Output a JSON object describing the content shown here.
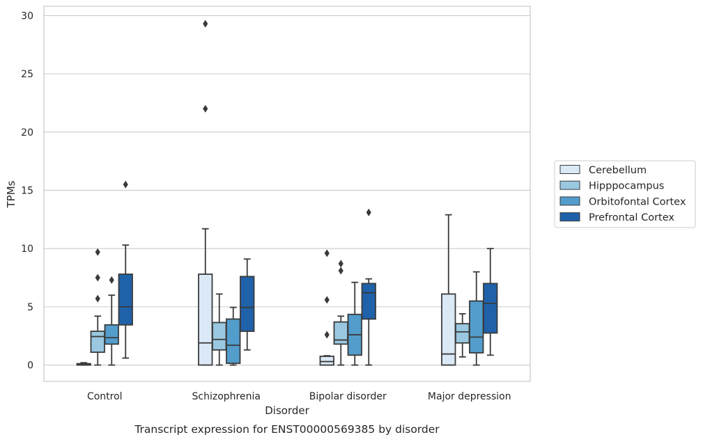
{
  "chart_data": {
    "type": "boxplot",
    "caption": "Transcript expression for ENST00000569385 by disorder",
    "xlabel": "Disorder",
    "ylabel": "TPMs",
    "ylim": [
      -1.4,
      30.8
    ],
    "yticks": [
      0,
      5,
      10,
      15,
      20,
      25,
      30
    ],
    "grid": true,
    "legend_placement": "right-center",
    "categories": [
      "Control",
      "Schizophrenia",
      "Bipolar disorder",
      "Major depression"
    ],
    "series": [
      {
        "name": "Cerebellum",
        "color": "#dbe9f6",
        "boxes": [
          {
            "whisker_low": 0.0,
            "q1": 0.0,
            "median": 0.05,
            "q3": 0.12,
            "whisker_high": 0.2,
            "outliers": []
          },
          {
            "whisker_low": 0.0,
            "q1": 0.0,
            "median": 1.9,
            "q3": 7.8,
            "whisker_high": 11.7,
            "outliers": [
              22.0,
              29.3
            ]
          },
          {
            "whisker_low": 0.0,
            "q1": 0.0,
            "median": 0.3,
            "q3": 0.75,
            "whisker_high": 0.8,
            "outliers": [
              2.6,
              5.6,
              9.6
            ]
          },
          {
            "whisker_low": 0.0,
            "q1": 0.0,
            "median": 0.95,
            "q3": 6.1,
            "whisker_high": 12.9,
            "outliers": []
          }
        ]
      },
      {
        "name": "Hipppocampus",
        "color": "#9ac8e0",
        "boxes": [
          {
            "whisker_low": 0.0,
            "q1": 1.1,
            "median": 2.45,
            "q3": 2.9,
            "whisker_high": 4.2,
            "outliers": [
              5.7,
              7.5,
              9.7
            ]
          },
          {
            "whisker_low": 0.0,
            "q1": 1.3,
            "median": 2.2,
            "q3": 3.65,
            "whisker_high": 6.1,
            "outliers": []
          },
          {
            "whisker_low": 0.0,
            "q1": 1.8,
            "median": 2.15,
            "q3": 3.7,
            "whisker_high": 4.2,
            "outliers": [
              8.1,
              8.7
            ]
          },
          {
            "whisker_low": 0.7,
            "q1": 1.9,
            "median": 2.85,
            "q3": 3.55,
            "whisker_high": 4.4,
            "outliers": []
          }
        ]
      },
      {
        "name": "Orbitofontal Cortex",
        "color": "#529dcc",
        "boxes": [
          {
            "whisker_low": 0.0,
            "q1": 1.8,
            "median": 2.35,
            "q3": 3.45,
            "whisker_high": 6.0,
            "outliers": [
              7.3
            ]
          },
          {
            "whisker_low": 0.0,
            "q1": 0.15,
            "median": 1.7,
            "q3": 3.95,
            "whisker_high": 4.95,
            "outliers": []
          },
          {
            "whisker_low": 0.0,
            "q1": 0.85,
            "median": 2.6,
            "q3": 4.35,
            "whisker_high": 7.1,
            "outliers": []
          },
          {
            "whisker_low": 0.0,
            "q1": 1.05,
            "median": 2.4,
            "q3": 5.5,
            "whisker_high": 8.0,
            "outliers": []
          }
        ]
      },
      {
        "name": "Prefrontal Cortex",
        "color": "#1f62aa",
        "boxes": [
          {
            "whisker_low": 0.6,
            "q1": 3.45,
            "median": 5.0,
            "q3": 7.8,
            "whisker_high": 10.3,
            "outliers": [
              15.5
            ]
          },
          {
            "whisker_low": 1.3,
            "q1": 2.9,
            "median": 4.95,
            "q3": 7.6,
            "whisker_high": 9.1,
            "outliers": []
          },
          {
            "whisker_low": 0.0,
            "q1": 3.95,
            "median": 6.2,
            "q3": 7.0,
            "whisker_high": 7.4,
            "outliers": [
              13.1
            ]
          },
          {
            "whisker_low": 0.85,
            "q1": 2.75,
            "median": 5.3,
            "q3": 7.0,
            "whisker_high": 10.0,
            "outliers": []
          }
        ]
      }
    ]
  }
}
